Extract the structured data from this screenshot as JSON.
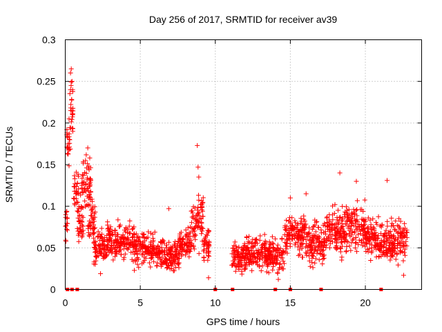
{
  "chart_data": {
    "type": "scatter",
    "title": "Day 256 of 2017, SRMTID for receiver av39",
    "xlabel": "GPS time / hours",
    "ylabel": "SRMTID / TECUs",
    "xlim": [
      0,
      23.75
    ],
    "ylim": [
      0,
      0.3
    ],
    "x_ticks": [
      0,
      5,
      10,
      15,
      20
    ],
    "x_tick_labels": [
      "0",
      "5",
      "10",
      "15",
      "20"
    ],
    "y_ticks": [
      0,
      0.05,
      0.1,
      0.15,
      0.2,
      0.25,
      0.3
    ],
    "y_tick_labels": [
      "0",
      "0.05",
      "0.1",
      "0.15",
      "0.2",
      "0.25",
      "0.3"
    ],
    "grid": true,
    "marker": "plus",
    "series": [
      {
        "name": "SRMTID",
        "color": "#ff0000",
        "envelope": [
          {
            "x": [
              0.0,
              0.15
            ],
            "y_center": 0.08,
            "spread": 0.03
          },
          {
            "x": [
              0.1,
              0.35
            ],
            "y_center": 0.17,
            "spread": 0.035
          },
          {
            "x": [
              0.3,
              0.55
            ],
            "y_center": 0.215,
            "spread": 0.05
          },
          {
            "x": [
              0.55,
              0.9
            ],
            "y_center": 0.12,
            "spread": 0.04
          },
          {
            "x": [
              0.8,
              1.2
            ],
            "y_center": 0.08,
            "spread": 0.035
          },
          {
            "x": [
              1.1,
              1.7
            ],
            "y_center": 0.13,
            "spread": 0.04
          },
          {
            "x": [
              1.5,
              2.0
            ],
            "y_center": 0.085,
            "spread": 0.035
          },
          {
            "x": [
              1.9,
              2.8
            ],
            "y_center": 0.05,
            "spread": 0.025
          },
          {
            "x": [
              2.8,
              4.6
            ],
            "y_center": 0.06,
            "spread": 0.03
          },
          {
            "x": [
              4.6,
              6.0
            ],
            "y_center": 0.048,
            "spread": 0.03
          },
          {
            "x": [
              6.0,
              7.6
            ],
            "y_center": 0.042,
            "spread": 0.025
          },
          {
            "x": [
              7.6,
              8.4
            ],
            "y_center": 0.055,
            "spread": 0.03
          },
          {
            "x": [
              8.4,
              9.2
            ],
            "y_center": 0.08,
            "spread": 0.045
          },
          {
            "x": [
              9.2,
              9.6
            ],
            "y_center": 0.05,
            "spread": 0.03
          },
          {
            "x": [
              11.1,
              12.0
            ],
            "y_center": 0.038,
            "spread": 0.025
          },
          {
            "x": [
              12.0,
              13.4
            ],
            "y_center": 0.045,
            "spread": 0.03
          },
          {
            "x": [
              13.4,
              14.6
            ],
            "y_center": 0.04,
            "spread": 0.03
          },
          {
            "x": [
              14.6,
              16.0
            ],
            "y_center": 0.065,
            "spread": 0.035
          },
          {
            "x": [
              16.0,
              17.4
            ],
            "y_center": 0.055,
            "spread": 0.035
          },
          {
            "x": [
              17.4,
              18.6
            ],
            "y_center": 0.07,
            "spread": 0.04
          },
          {
            "x": [
              18.6,
              20.0
            ],
            "y_center": 0.075,
            "spread": 0.04
          },
          {
            "x": [
              20.0,
              21.2
            ],
            "y_center": 0.06,
            "spread": 0.035
          },
          {
            "x": [
              21.2,
              22.8
            ],
            "y_center": 0.06,
            "spread": 0.035
          }
        ],
        "highlights": [
          {
            "x": 0.25,
            "y": 0.205
          },
          {
            "x": 0.4,
            "y": 0.265
          },
          {
            "x": 0.45,
            "y": 0.25
          },
          {
            "x": 0.35,
            "y": 0.24
          },
          {
            "x": 0.5,
            "y": 0.19
          },
          {
            "x": 1.5,
            "y": 0.17
          },
          {
            "x": 1.35,
            "y": 0.155
          },
          {
            "x": 8.8,
            "y": 0.173
          },
          {
            "x": 8.85,
            "y": 0.147
          },
          {
            "x": 8.9,
            "y": 0.135
          },
          {
            "x": 18.3,
            "y": 0.14
          },
          {
            "x": 19.4,
            "y": 0.13
          },
          {
            "x": 21.45,
            "y": 0.131
          },
          {
            "x": 6.9,
            "y": 0.097
          },
          {
            "x": 9.55,
            "y": 0.014
          },
          {
            "x": 22.55,
            "y": 0.017
          },
          {
            "x": 14.2,
            "y": 0.012
          },
          {
            "x": 2.35,
            "y": 0.019
          },
          {
            "x": 15.0,
            "y": 0.11
          },
          {
            "x": 16.05,
            "y": 0.115
          }
        ]
      }
    ],
    "gap_markers_x": [
      0.15,
      0.45,
      0.8,
      10.0,
      11.15,
      14.0,
      15.0,
      17.05,
      21.05
    ]
  }
}
